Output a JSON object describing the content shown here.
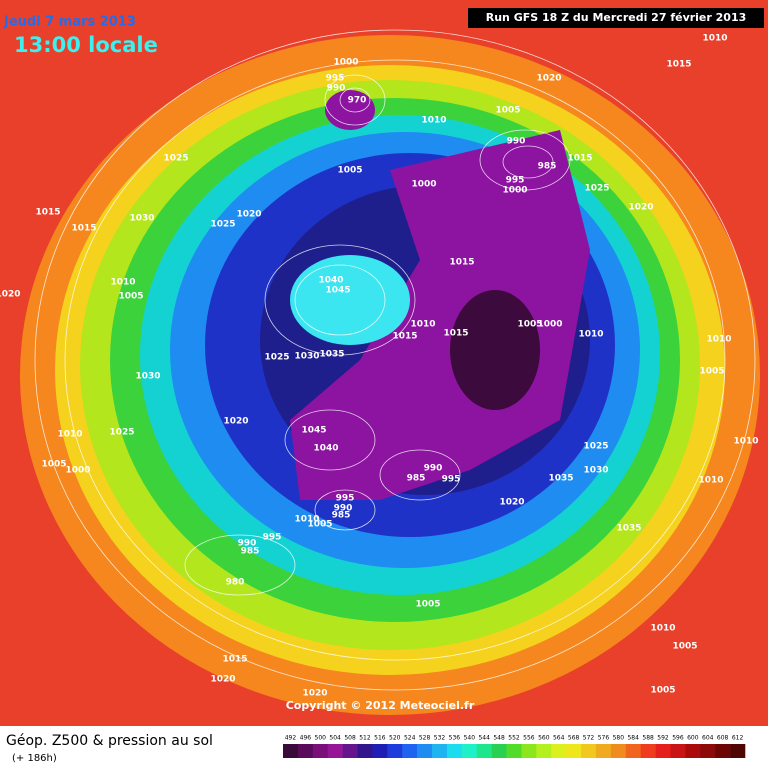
{
  "header": {
    "date": "Jeudi 7 mars 2013",
    "time": "13:00 locale",
    "run": "Run GFS 18 Z du Mercredi 27 février 2013"
  },
  "copyright": "Copyright © 2012 Meteociel.fr",
  "footer": {
    "title": "Géop. Z500 & pression au sol",
    "lead": "(+ 186h)"
  },
  "isobar_labels": [
    1000,
    995,
    990,
    970,
    1010,
    1020,
    1005,
    990,
    985,
    995,
    1000,
    1015,
    1025,
    1020,
    1010,
    1015,
    1025,
    1005,
    1000,
    1015,
    1030,
    1020,
    1025,
    1015,
    1015,
    1040,
    1045,
    1010,
    1005,
    1020,
    1010,
    1015,
    1015,
    1005,
    1000,
    1010,
    1010,
    1005,
    1025,
    1030,
    1035,
    1030,
    1020,
    1025,
    1010,
    1045,
    1040,
    1025,
    1010,
    1030,
    1035,
    990,
    985,
    995,
    1005,
    1000,
    1010,
    1020,
    995,
    990,
    985,
    1010,
    1005,
    995,
    990,
    985,
    1035,
    980,
    1005,
    1010,
    1005,
    1015,
    1020,
    1005,
    1020
  ],
  "colorbar": {
    "values": [
      492,
      496,
      500,
      504,
      508,
      512,
      516,
      520,
      524,
      528,
      532,
      536,
      540,
      544,
      548,
      552,
      556,
      560,
      564,
      568,
      572,
      576,
      580,
      584,
      588,
      592,
      596,
      600,
      604,
      608,
      612
    ],
    "colors": [
      "#3a0a3a",
      "#5a0a5a",
      "#7a0f7a",
      "#961496",
      "#64148c",
      "#32148c",
      "#1e1eb4",
      "#1e3cdc",
      "#1e64f0",
      "#1e8cf0",
      "#1eb4f0",
      "#1edcf0",
      "#1ef0c8",
      "#1ee68c",
      "#28d250",
      "#50dc28",
      "#8ce61e",
      "#b4f01e",
      "#dcf01e",
      "#f0e61e",
      "#f0c81e",
      "#f0aa1e",
      "#f08c1e",
      "#f0641e",
      "#f03c1e",
      "#e61e1e",
      "#c81414",
      "#aa0a0a",
      "#8c0a0a",
      "#6e0505",
      "#500505"
    ]
  }
}
